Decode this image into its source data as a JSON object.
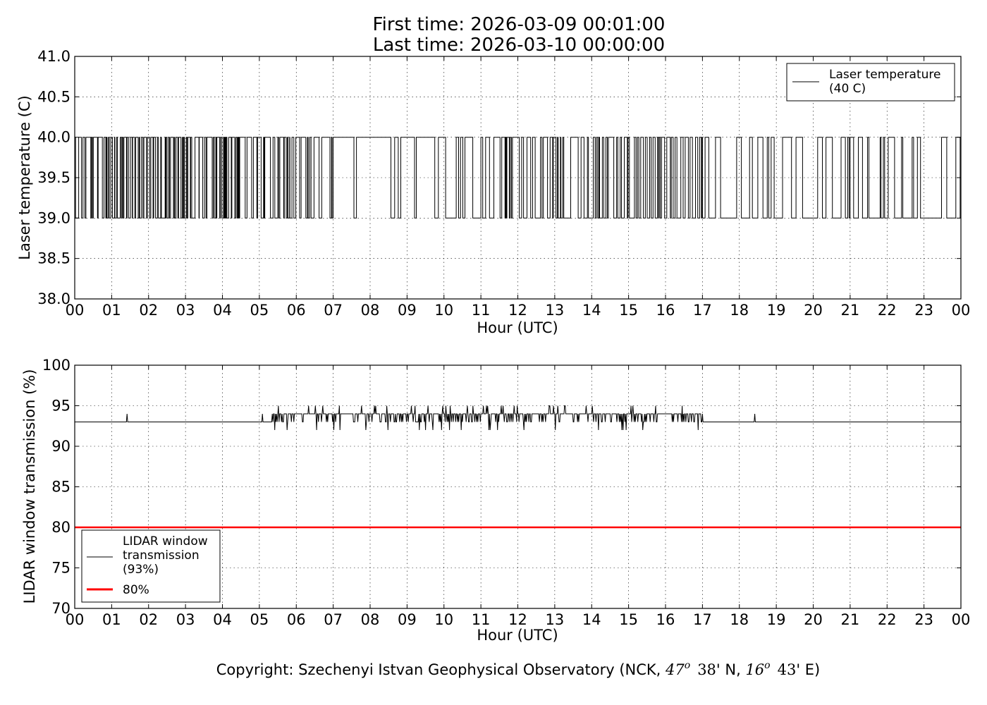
{
  "figure": {
    "title_line1": "First time: 2026-03-09 00:01:00",
    "title_line2": "Last time: 2026-03-10 00:00:00",
    "copyright": {
      "prefix": "Copyright: Szechenyi Istvan Geophysical Observatory (NCK, ",
      "lat_deg": "47",
      "deg_mark": "o",
      "lat_min": "38",
      "lat_suffix": "' N, ",
      "lon_deg": "16",
      "lon_min": "43",
      "lon_suffix": "' E)"
    }
  },
  "chart_data": [
    {
      "type": "line",
      "ylabel": "Laser temperature (C)",
      "xlabel": "Hour (UTC)",
      "ylim": [
        38.0,
        41.0
      ],
      "xlim": [
        "2026-03-09 00:00",
        "2026-03-10 00:00"
      ],
      "yticks": [
        "38.0",
        "38.5",
        "39.0",
        "39.5",
        "40.0",
        "40.5",
        "41.0"
      ],
      "xticks": [
        "00",
        "01",
        "02",
        "03",
        "04",
        "05",
        "06",
        "07",
        "08",
        "09",
        "10",
        "11",
        "12",
        "13",
        "14",
        "15",
        "16",
        "17",
        "18",
        "19",
        "20",
        "21",
        "22",
        "23",
        "00"
      ],
      "grid": true,
      "legend_position": "top-right",
      "series": [
        {
          "name": "Laser temperature\n(40 C)",
          "color": "#000000",
          "description": "Signal toggles between 39.0 and 40.0 throughout the day",
          "levels": [
            39.0,
            40.0
          ],
          "segments": [
            {
              "start": "00:00",
              "end": "05:50",
              "high_fraction": 0.6,
              "toggle_density": "very high"
            },
            {
              "start": "05:50",
              "end": "07:00",
              "high_fraction": 0.7,
              "toggle_density": "high"
            },
            {
              "start": "07:00",
              "end": "09:45",
              "high_fraction": 0.8,
              "toggle_density": "medium"
            },
            {
              "start": "09:45",
              "end": "11:00",
              "high_fraction": 0.55,
              "toggle_density": "low"
            },
            {
              "start": "11:00",
              "end": "17:00",
              "high_fraction": 0.5,
              "toggle_density": "high"
            },
            {
              "start": "17:00",
              "end": "24:00",
              "high_fraction": 0.3,
              "toggle_density": "medium"
            }
          ]
        }
      ]
    },
    {
      "type": "line",
      "ylabel": "LIDAR window transmission (%)",
      "xlabel": "Hour (UTC)",
      "ylim": [
        70,
        100
      ],
      "xlim": [
        "2026-03-09 00:00",
        "2026-03-10 00:00"
      ],
      "yticks": [
        "70",
        "75",
        "80",
        "85",
        "90",
        "95",
        "100"
      ],
      "xticks": [
        "00",
        "01",
        "02",
        "03",
        "04",
        "05",
        "06",
        "07",
        "08",
        "09",
        "10",
        "11",
        "12",
        "13",
        "14",
        "15",
        "16",
        "17",
        "18",
        "19",
        "20",
        "21",
        "22",
        "23",
        "00"
      ],
      "grid": true,
      "legend_position": "bottom-left",
      "series": [
        {
          "name": "LIDAR window\ntransmission\n(93%)",
          "color": "#000000",
          "baseline": 93,
          "active_window": [
            "05:20",
            "17:00"
          ],
          "active_range": [
            92,
            95
          ],
          "spikes": [
            {
              "x": "01:25",
              "y": 94
            },
            {
              "x": "05:05",
              "y": 94
            },
            {
              "x": "17:00",
              "y": 94
            },
            {
              "x": "18:25",
              "y": 94
            }
          ]
        },
        {
          "name": "80%",
          "color": "#ff0000",
          "constant": 80
        }
      ]
    }
  ]
}
